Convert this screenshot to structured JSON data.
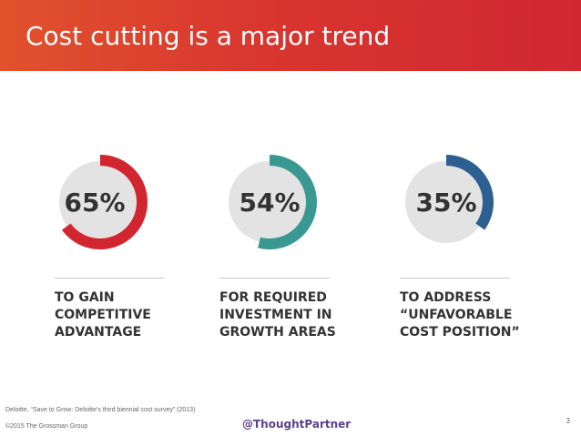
{
  "slide": {
    "title": "Cost cutting is a major trend",
    "header_gradient": [
      "#e1522d",
      "#d12731"
    ]
  },
  "chart_data": {
    "type": "pie",
    "title": "",
    "items": [
      {
        "value": 65,
        "label_value": "65%",
        "caption": [
          "TO GAIN",
          "COMPETITIVE",
          "ADVANTAGE"
        ],
        "color": "#d1262f"
      },
      {
        "value": 54,
        "label_value": "54%",
        "caption": [
          "FOR REQUIRED",
          "INVESTMENT IN",
          "GROWTH AREAS"
        ],
        "color": "#3a9893"
      },
      {
        "value": 35,
        "label_value": "35%",
        "caption": [
          "TO ADDRESS",
          "“UNFAVORABLE",
          "COST POSITION”"
        ],
        "color": "#2d5f90"
      }
    ],
    "track_color": "#e3e3e3"
  },
  "footer": {
    "source": "Deloitte, “Save to Grow: Deloitte’s third biennial cost survey” (2013)",
    "copyright": "©2015 The Grossman Group",
    "handle": "@ThoughtPartner",
    "page_number": "3"
  }
}
